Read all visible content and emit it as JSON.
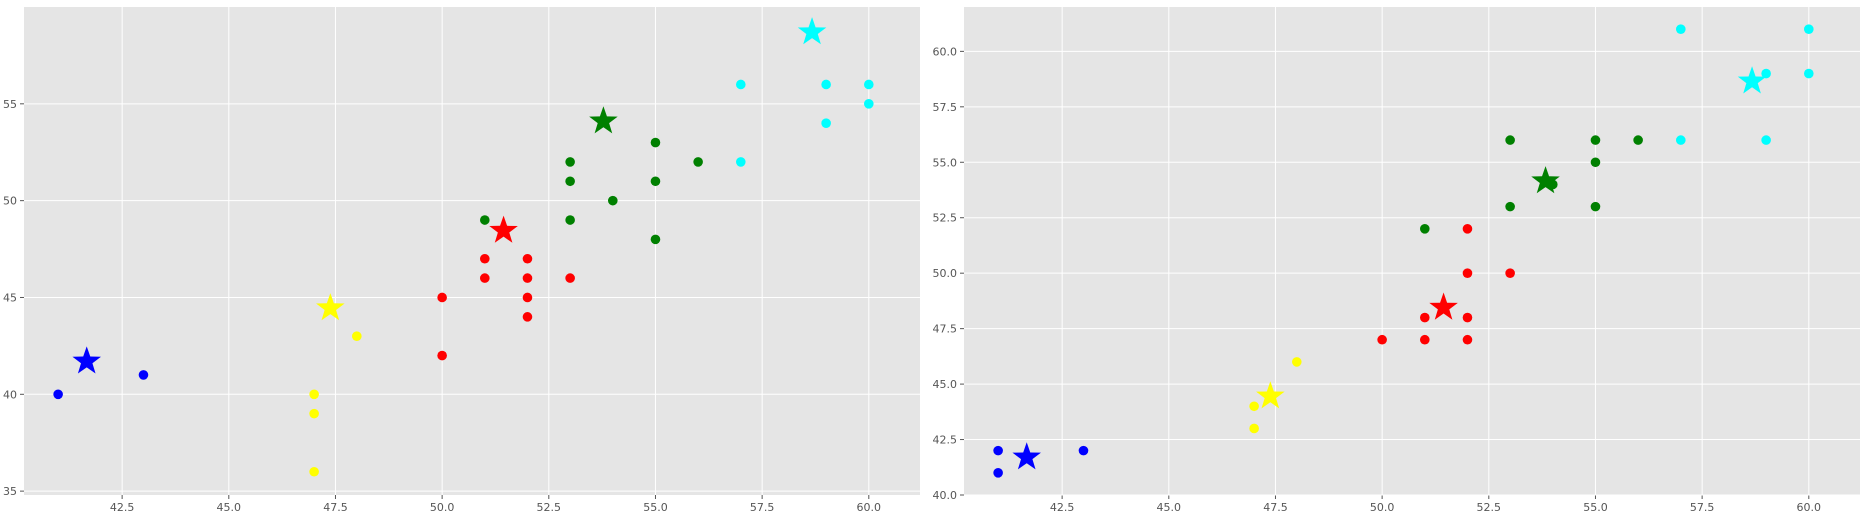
{
  "chart_data": [
    {
      "type": "scatter",
      "xlim": [
        40.2,
        61.2
      ],
      "ylim": [
        34.8,
        60.0
      ],
      "xticks": [
        42.5,
        45.0,
        47.5,
        50.0,
        52.5,
        55.0,
        57.5,
        60.0
      ],
      "yticks": [
        35,
        40,
        45,
        50,
        55
      ],
      "xtick_labels": [
        "42.5",
        "45.0",
        "47.5",
        "50.0",
        "52.5",
        "55.0",
        "57.5",
        "60.0"
      ],
      "ytick_labels": [
        "35",
        "40",
        "45",
        "50",
        "55"
      ],
      "grid": true,
      "series": [
        {
          "color": "#0000ff",
          "points": [
            [
              41,
              40
            ],
            [
              43,
              41
            ]
          ]
        },
        {
          "color": "#ffff00",
          "points": [
            [
              47,
              40
            ],
            [
              47,
              39
            ],
            [
              47,
              36
            ],
            [
              48,
              43
            ]
          ]
        },
        {
          "color": "#ff0000",
          "points": [
            [
              50,
              45
            ],
            [
              50,
              42
            ],
            [
              51,
              47
            ],
            [
              51,
              46
            ],
            [
              52,
              47
            ],
            [
              52,
              46
            ],
            [
              52,
              45
            ],
            [
              52,
              44
            ],
            [
              53,
              46
            ]
          ]
        },
        {
          "color": "#008000",
          "points": [
            [
              51,
              49
            ],
            [
              53,
              52
            ],
            [
              53,
              51
            ],
            [
              53,
              49
            ],
            [
              54,
              50
            ],
            [
              55,
              53
            ],
            [
              55,
              51
            ],
            [
              55,
              48
            ],
            [
              56,
              52
            ]
          ]
        },
        {
          "color": "#00ffff",
          "points": [
            [
              57,
              56
            ],
            [
              57,
              52
            ],
            [
              59,
              56
            ],
            [
              59,
              54
            ],
            [
              60,
              56
            ],
            [
              60,
              55
            ]
          ]
        }
      ],
      "centroids": [
        {
          "color": "#0000ff",
          "x": 41.67,
          "y": 41.7
        },
        {
          "color": "#ffff00",
          "x": 47.38,
          "y": 44.45
        },
        {
          "color": "#ff0000",
          "x": 51.44,
          "y": 48.45
        },
        {
          "color": "#008000",
          "x": 53.78,
          "y": 54.1
        },
        {
          "color": "#00ffff",
          "x": 58.67,
          "y": 58.7
        }
      ]
    },
    {
      "type": "scatter",
      "xlim": [
        40.2,
        61.2
      ],
      "ylim": [
        40.0,
        62.0
      ],
      "xticks": [
        42.5,
        45.0,
        47.5,
        50.0,
        52.5,
        55.0,
        57.5,
        60.0
      ],
      "yticks": [
        40.0,
        42.5,
        45.0,
        47.5,
        50.0,
        52.5,
        55.0,
        57.5,
        60.0
      ],
      "xtick_labels": [
        "42.5",
        "45.0",
        "47.5",
        "50.0",
        "52.5",
        "55.0",
        "57.5",
        "60.0"
      ],
      "ytick_labels": [
        "40.0",
        "42.5",
        "45.0",
        "47.5",
        "50.0",
        "52.5",
        "55.0",
        "57.5",
        "60.0"
      ],
      "grid": true,
      "series": [
        {
          "color": "#0000ff",
          "points": [
            [
              41,
              42
            ],
            [
              41,
              41
            ],
            [
              43,
              42
            ]
          ]
        },
        {
          "color": "#ffff00",
          "points": [
            [
              47,
              44
            ],
            [
              47,
              43
            ],
            [
              48,
              46
            ]
          ]
        },
        {
          "color": "#ff0000",
          "points": [
            [
              50,
              47
            ],
            [
              51,
              48
            ],
            [
              51,
              47
            ],
            [
              52,
              52
            ],
            [
              52,
              50
            ],
            [
              52,
              48
            ],
            [
              52,
              47
            ],
            [
              53,
              50
            ]
          ]
        },
        {
          "color": "#008000",
          "points": [
            [
              51,
              52
            ],
            [
              53,
              56
            ],
            [
              53,
              53
            ],
            [
              54,
              54
            ],
            [
              55,
              56
            ],
            [
              55,
              55
            ],
            [
              55,
              53
            ],
            [
              56,
              56
            ]
          ]
        },
        {
          "color": "#00ffff",
          "points": [
            [
              57,
              61
            ],
            [
              57,
              56
            ],
            [
              59,
              59
            ],
            [
              59,
              56
            ],
            [
              60,
              61
            ],
            [
              60,
              59
            ]
          ]
        }
      ],
      "centroids": [
        {
          "color": "#0000ff",
          "x": 41.67,
          "y": 41.7
        },
        {
          "color": "#ffff00",
          "x": 47.38,
          "y": 44.45
        },
        {
          "color": "#ff0000",
          "x": 51.44,
          "y": 48.45
        },
        {
          "color": "#008000",
          "x": 53.83,
          "y": 54.15
        },
        {
          "color": "#00ffff",
          "x": 58.67,
          "y": 58.65
        }
      ]
    }
  ]
}
